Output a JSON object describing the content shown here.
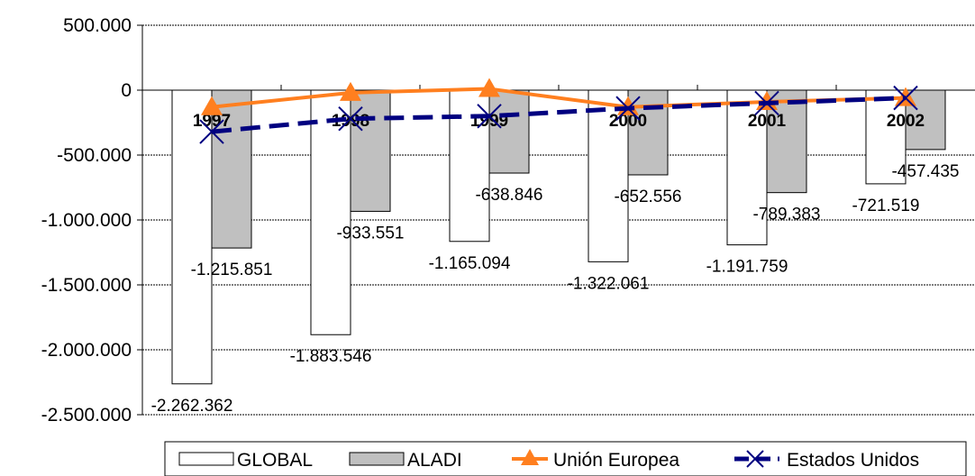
{
  "chart_data": {
    "type": "bar",
    "categories": [
      "1997",
      "1998",
      "1999",
      "2000",
      "2001",
      "2002"
    ],
    "ylim": [
      -2500000,
      500000
    ],
    "yticks": [
      500000,
      0,
      -500000,
      -1000000,
      -1500000,
      -2000000,
      -2500000
    ],
    "ytick_labels": [
      "500.000",
      "0",
      "-500.000",
      "-1.000.000",
      "-1.500.000",
      "-2.000.000",
      "-2.500.000"
    ],
    "grid": true,
    "legend_position": "bottom",
    "series": [
      {
        "name": "GLOBAL",
        "kind": "bar",
        "color": "#ffffff",
        "values": [
          -2262362,
          -1883546,
          -1165094,
          -1322061,
          -1191759,
          -721519
        ],
        "labels": [
          "-2.262.362",
          "-1.883.546",
          "-1.165.094",
          "-1.322.061",
          "-1.191.759",
          "-721.519"
        ]
      },
      {
        "name": "ALADI",
        "kind": "bar",
        "color": "#c0c0c0",
        "values": [
          -1215851,
          -933551,
          -638846,
          -652556,
          -789383,
          -457435
        ],
        "labels": [
          "-1.215.851",
          "-933.551",
          "-638.846",
          "-652.556",
          "-789.383",
          "-457.435"
        ]
      },
      {
        "name": "Unión Europea",
        "kind": "line",
        "color": "#ff7f1f",
        "marker": "triangle",
        "values": [
          -130000,
          -20000,
          10000,
          -130000,
          -90000,
          -60000
        ]
      },
      {
        "name": "Estados Unidos",
        "kind": "line",
        "color": "#000080",
        "marker": "x",
        "dashed": true,
        "values": [
          -320000,
          -220000,
          -200000,
          -140000,
          -100000,
          -60000
        ]
      }
    ]
  }
}
